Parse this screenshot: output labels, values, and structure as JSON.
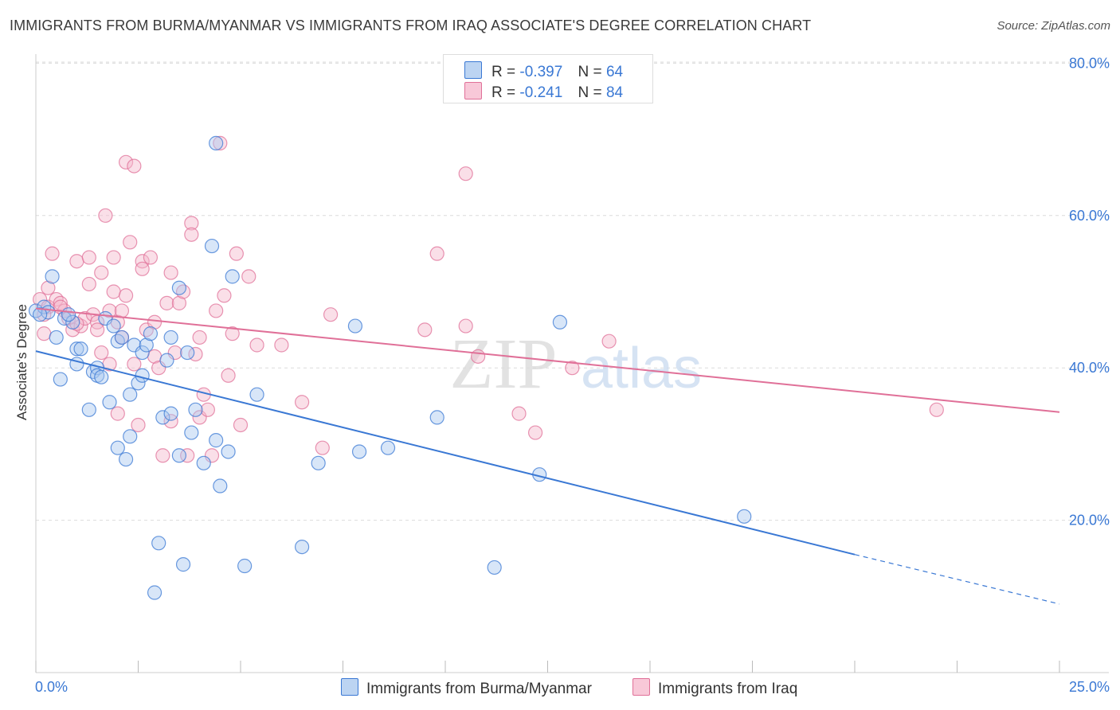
{
  "title": "IMMIGRANTS FROM BURMA/MYANMAR VS IMMIGRANTS FROM IRAQ ASSOCIATE'S DEGREE CORRELATION CHART",
  "source": "Source: ZipAtlas.com",
  "watermark": {
    "zip": "ZIP",
    "atlas": "atlas"
  },
  "legend": {
    "r_label": "R =",
    "n_label": "N =",
    "series": [
      {
        "r": "-0.397",
        "n": "64"
      },
      {
        "r": "-0.241",
        "n": "84"
      }
    ]
  },
  "chart_data": {
    "type": "scatter",
    "xlabel": "",
    "ylabel": "Associate's Degree",
    "xlim": [
      0,
      25
    ],
    "ylim": [
      0,
      82
    ],
    "x_tick_labels": [
      "0.0%",
      "25.0%"
    ],
    "y_ticks": [
      20,
      40,
      60,
      80
    ],
    "y_tick_labels": [
      "20.0%",
      "40.0%",
      "60.0%",
      "80.0%"
    ],
    "grid": true,
    "legend_position": "bottom",
    "colors": {
      "blue": "#3a78d4",
      "blue_fill": "#a9c8f0",
      "pink": "#e07098",
      "pink_fill": "#f4b8cc",
      "axis_text": "#3a78d4"
    },
    "series": [
      {
        "name": "Immigrants from Burma/Myanmar",
        "color": "#3a78d4",
        "trend": {
          "x": [
            0,
            20
          ],
          "y": [
            42.2,
            15.5
          ],
          "dashed_to": [
            25,
            9.0
          ]
        },
        "points": [
          [
            0.0,
            47.5
          ],
          [
            0.2,
            48.0
          ],
          [
            0.3,
            47.3
          ],
          [
            0.4,
            52.0
          ],
          [
            0.5,
            44.0
          ],
          [
            0.6,
            38.5
          ],
          [
            0.7,
            46.5
          ],
          [
            0.9,
            46.0
          ],
          [
            1.0,
            40.5
          ],
          [
            1.0,
            42.5
          ],
          [
            1.1,
            42.5
          ],
          [
            1.3,
            34.5
          ],
          [
            1.4,
            39.5
          ],
          [
            1.5,
            40.0
          ],
          [
            1.5,
            39.0
          ],
          [
            1.6,
            38.8
          ],
          [
            1.7,
            46.5
          ],
          [
            1.8,
            35.5
          ],
          [
            1.9,
            45.5
          ],
          [
            2.0,
            43.5
          ],
          [
            2.0,
            29.5
          ],
          [
            2.1,
            44.0
          ],
          [
            2.2,
            28.0
          ],
          [
            2.3,
            36.5
          ],
          [
            2.3,
            31.0
          ],
          [
            2.4,
            43.0
          ],
          [
            2.5,
            38.0
          ],
          [
            2.6,
            39.0
          ],
          [
            2.6,
            42.0
          ],
          [
            2.7,
            43.0
          ],
          [
            2.8,
            44.5
          ],
          [
            2.9,
            10.5
          ],
          [
            3.0,
            17.0
          ],
          [
            3.1,
            33.5
          ],
          [
            3.2,
            41.0
          ],
          [
            3.3,
            44.0
          ],
          [
            3.3,
            34.0
          ],
          [
            3.5,
            28.5
          ],
          [
            3.5,
            50.5
          ],
          [
            3.6,
            14.2
          ],
          [
            3.7,
            42.0
          ],
          [
            3.8,
            31.5
          ],
          [
            3.9,
            34.5
          ],
          [
            4.1,
            27.5
          ],
          [
            4.3,
            56.0
          ],
          [
            4.4,
            30.5
          ],
          [
            4.4,
            69.5
          ],
          [
            4.5,
            24.5
          ],
          [
            4.7,
            29.0
          ],
          [
            4.8,
            52.0
          ],
          [
            5.1,
            14.0
          ],
          [
            5.4,
            36.5
          ],
          [
            6.5,
            16.5
          ],
          [
            6.9,
            27.5
          ],
          [
            7.8,
            45.5
          ],
          [
            7.9,
            29.0
          ],
          [
            8.6,
            29.5
          ],
          [
            9.8,
            33.5
          ],
          [
            11.2,
            13.8
          ],
          [
            12.3,
            26.0
          ],
          [
            12.8,
            46.0
          ],
          [
            17.3,
            20.5
          ],
          [
            0.8,
            47.0
          ],
          [
            0.1,
            47.0
          ]
        ]
      },
      {
        "name": "Immigrants from Iraq",
        "color": "#e07098",
        "trend": {
          "x": [
            0,
            25
          ],
          "y": [
            47.8,
            34.2
          ]
        },
        "points": [
          [
            0.1,
            49.0
          ],
          [
            0.2,
            44.5
          ],
          [
            0.3,
            50.5
          ],
          [
            0.3,
            48.0
          ],
          [
            0.4,
            55.0
          ],
          [
            0.5,
            49.0
          ],
          [
            0.6,
            48.5
          ],
          [
            0.7,
            47.5
          ],
          [
            0.8,
            46.5
          ],
          [
            0.9,
            45.0
          ],
          [
            1.0,
            54.0
          ],
          [
            1.1,
            45.5
          ],
          [
            1.2,
            46.5
          ],
          [
            1.3,
            51.0
          ],
          [
            1.3,
            54.5
          ],
          [
            1.4,
            47.0
          ],
          [
            1.5,
            46.0
          ],
          [
            1.5,
            45.0
          ],
          [
            1.6,
            52.5
          ],
          [
            1.6,
            42.0
          ],
          [
            1.7,
            60.0
          ],
          [
            1.8,
            47.5
          ],
          [
            1.8,
            40.5
          ],
          [
            1.9,
            50.0
          ],
          [
            1.9,
            54.5
          ],
          [
            2.0,
            46.0
          ],
          [
            2.0,
            34.0
          ],
          [
            2.1,
            47.5
          ],
          [
            2.1,
            44.0
          ],
          [
            2.2,
            49.5
          ],
          [
            2.2,
            67.0
          ],
          [
            2.3,
            56.5
          ],
          [
            2.4,
            40.5
          ],
          [
            2.4,
            66.5
          ],
          [
            2.5,
            32.5
          ],
          [
            2.6,
            54.0
          ],
          [
            2.6,
            53.0
          ],
          [
            2.7,
            45.0
          ],
          [
            2.8,
            54.5
          ],
          [
            2.9,
            46.0
          ],
          [
            2.9,
            41.5
          ],
          [
            3.0,
            40.0
          ],
          [
            3.1,
            28.5
          ],
          [
            3.2,
            48.5
          ],
          [
            3.3,
            52.5
          ],
          [
            3.3,
            33.0
          ],
          [
            3.4,
            42.0
          ],
          [
            3.5,
            48.5
          ],
          [
            3.6,
            50.0
          ],
          [
            3.7,
            28.5
          ],
          [
            3.8,
            59.0
          ],
          [
            3.8,
            57.5
          ],
          [
            4.0,
            33.5
          ],
          [
            4.0,
            44.0
          ],
          [
            4.1,
            36.5
          ],
          [
            4.2,
            34.5
          ],
          [
            4.3,
            28.5
          ],
          [
            4.4,
            47.5
          ],
          [
            4.5,
            69.5
          ],
          [
            4.6,
            49.5
          ],
          [
            4.7,
            39.0
          ],
          [
            4.8,
            44.5
          ],
          [
            4.9,
            55.0
          ],
          [
            5.0,
            32.5
          ],
          [
            5.2,
            52.0
          ],
          [
            5.4,
            43.0
          ],
          [
            6.0,
            43.0
          ],
          [
            6.5,
            35.5
          ],
          [
            7.0,
            29.5
          ],
          [
            7.2,
            47.0
          ],
          [
            9.5,
            45.0
          ],
          [
            9.8,
            55.0
          ],
          [
            10.5,
            65.5
          ],
          [
            10.5,
            45.5
          ],
          [
            10.8,
            41.5
          ],
          [
            11.8,
            34.0
          ],
          [
            12.2,
            31.5
          ],
          [
            13.1,
            40.0
          ],
          [
            14.0,
            43.5
          ],
          [
            22.0,
            34.5
          ],
          [
            0.2,
            47.0
          ],
          [
            1.0,
            45.8
          ],
          [
            0.6,
            48.0
          ],
          [
            3.9,
            41.8
          ]
        ]
      }
    ]
  }
}
